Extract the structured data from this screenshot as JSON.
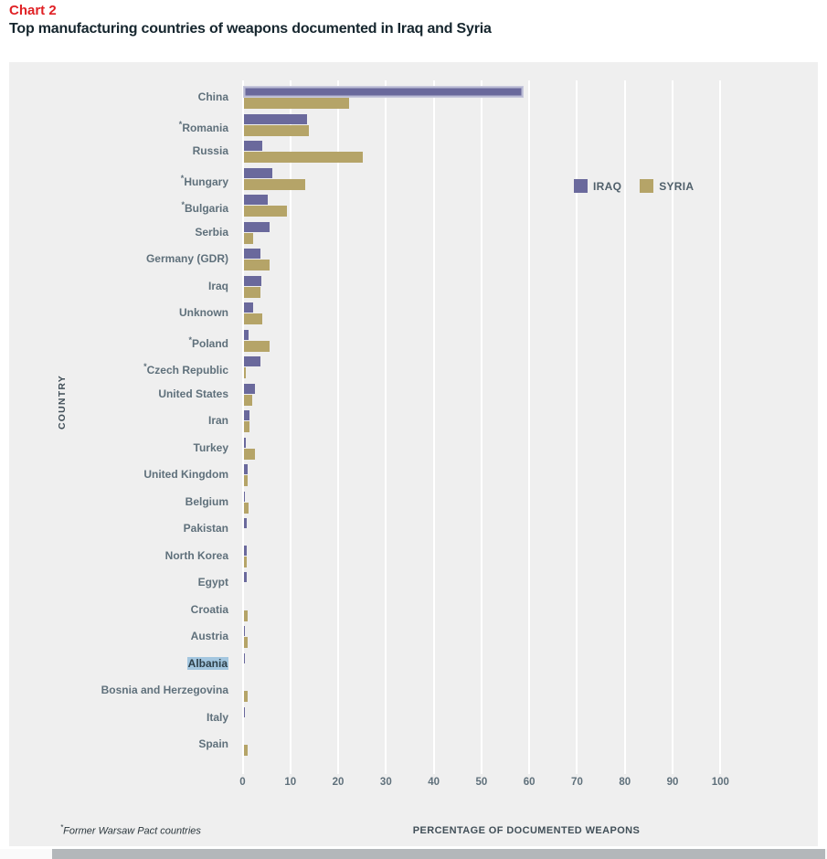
{
  "header": {
    "chart_label": "Chart 2",
    "title": "Top manufacturing countries of weapons documented in Iraq and Syria"
  },
  "footnote": {
    "marker": "*",
    "text": "Former Warsaw Pact countries"
  },
  "colors": {
    "accent_red": "#e02125",
    "panel_bg": "#efefef",
    "iraq_bar": "#6a699c",
    "syria_bar": "#b5a468",
    "selection_highlight": "#a3c6df",
    "scrollbar_thumb": "#b3b7ba"
  },
  "chart_data": {
    "type": "bar",
    "orientation": "horizontal",
    "title": "Top manufacturing countries of weapons documented in Iraq and Syria",
    "xlabel": "PERCENTAGE OF DOCUMENTED WEAPONS",
    "ylabel": "COUNTRY",
    "xlim": [
      0,
      100
    ],
    "xticks": [
      0,
      10,
      20,
      30,
      40,
      50,
      60,
      70,
      80,
      90,
      100
    ],
    "grid": true,
    "legend_position": "upper-right",
    "categories": [
      "China",
      "*Romania",
      "Russia",
      "*Hungary",
      "*Bulgaria",
      "Serbia",
      "Germany (GDR)",
      "Iraq",
      "Unknown",
      "*Poland",
      "*Czech Republic",
      "United States",
      "Iran",
      "Turkey",
      "United Kingdom",
      "Belgium",
      "Pakistan",
      "North Korea",
      "Egypt",
      "Croatia",
      "Austria",
      "Albania",
      "Bosnia and Herzegovina",
      "Italy",
      "Spain"
    ],
    "series": [
      {
        "name": "IRAQ",
        "color": "#6a699c",
        "values": [
          58.5,
          13.3,
          4,
          6,
          5,
          5.5,
          3.5,
          3.7,
          2,
          1,
          3.5,
          2.3,
          1.3,
          0.5,
          0.8,
          0.3,
          0.7,
          0.7,
          0.7,
          0,
          0.3,
          0.3,
          0,
          0.3,
          0
        ]
      },
      {
        "name": "SYRIA",
        "color": "#b5a468",
        "values": [
          22,
          13.7,
          25,
          13,
          9,
          2,
          5.5,
          3.5,
          4,
          5.5,
          0.5,
          1.8,
          1.3,
          2.3,
          0.8,
          1.1,
          0,
          0.7,
          0,
          0.8,
          0.8,
          0,
          0.8,
          0,
          0.8
        ]
      }
    ],
    "selected_category": "Albania",
    "hover_outlined_bar": {
      "series": "IRAQ",
      "category": "China"
    }
  }
}
